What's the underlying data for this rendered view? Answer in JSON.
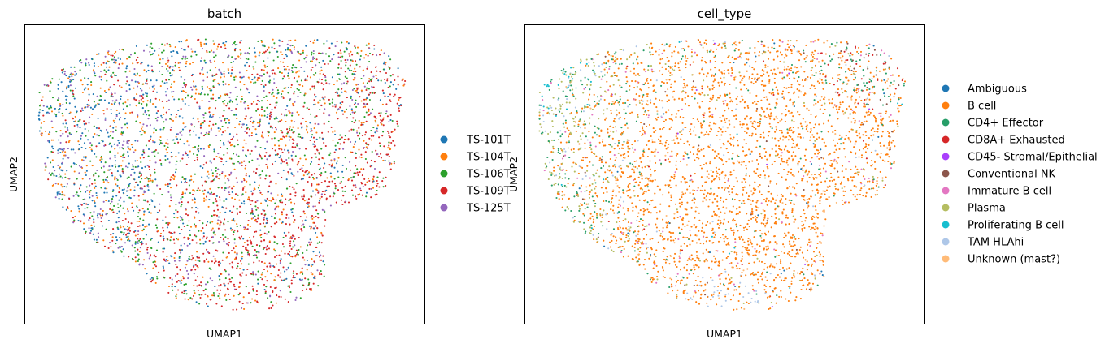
{
  "chart_data": [
    {
      "type": "scatter",
      "title": "batch",
      "xlabel": "UMAP1",
      "ylabel": "UMAP2",
      "grid": false,
      "ticks": false,
      "legend_placement": "right",
      "series": [
        {
          "name": "TS-101T",
          "color": "#1f77b4"
        },
        {
          "name": "TS-104T",
          "color": "#ff7f0e"
        },
        {
          "name": "TS-106T",
          "color": "#2ca02c"
        },
        {
          "name": "TS-109T",
          "color": "#d62728"
        },
        {
          "name": "TS-125T",
          "color": "#9467bd"
        }
      ]
    },
    {
      "type": "scatter",
      "title": "cell_type",
      "xlabel": "UMAP1",
      "ylabel": "UMAP2",
      "grid": false,
      "ticks": false,
      "legend_placement": "right",
      "series": [
        {
          "name": "Ambiguous",
          "color": "#1f77b4"
        },
        {
          "name": "B cell",
          "color": "#ff7f0e"
        },
        {
          "name": "CD4+ Effector",
          "color": "#279e68"
        },
        {
          "name": "CD8A+ Exhausted",
          "color": "#d62728"
        },
        {
          "name": "CD45- Stromal/Epithelial",
          "color": "#aa40fc"
        },
        {
          "name": "Conventional NK",
          "color": "#8c564b"
        },
        {
          "name": "Immature B cell",
          "color": "#e377c2"
        },
        {
          "name": "Plasma",
          "color": "#b5bd61"
        },
        {
          "name": "Proliferating B cell",
          "color": "#17becf"
        },
        {
          "name": "TAM HLAhi",
          "color": "#aec7e8"
        },
        {
          "name": "Unknown (mast?)",
          "color": "#ffbb78"
        }
      ]
    }
  ]
}
